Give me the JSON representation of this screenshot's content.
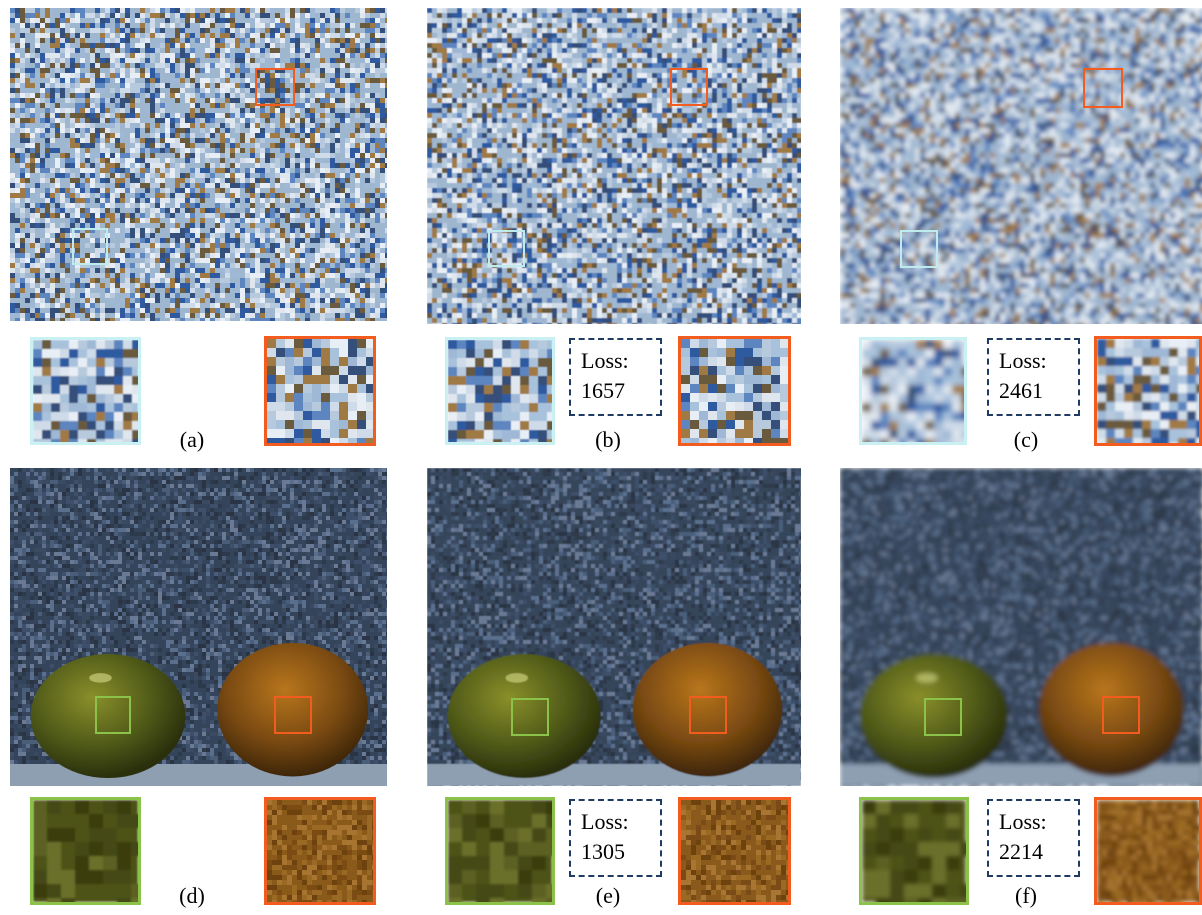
{
  "figure": {
    "panels": [
      {
        "id": "a",
        "caption": "(a)",
        "scene": "checker",
        "blur": 0,
        "loss": null
      },
      {
        "id": "b",
        "caption": "(b)",
        "scene": "checker",
        "blur": 0.6,
        "loss": {
          "label": "Loss:",
          "value": "1657"
        }
      },
      {
        "id": "c",
        "caption": "(c)",
        "scene": "checker",
        "blur": 2.5,
        "loss": {
          "label": "Loss:",
          "value": "2461"
        }
      },
      {
        "id": "d",
        "caption": "(d)",
        "scene": "fruit",
        "blur": 0,
        "loss": null
      },
      {
        "id": "e",
        "caption": "(e)",
        "scene": "fruit",
        "blur": 0.6,
        "loss": {
          "label": "Loss:",
          "value": "1305"
        }
      },
      {
        "id": "f",
        "caption": "(f)",
        "scene": "fruit",
        "blur": 2.5,
        "loss": {
          "label": "Loss:",
          "value": "2214"
        }
      }
    ]
  },
  "colors": {
    "roi_cyan": "#bdebee",
    "roi_orange": "#f25c1f",
    "roi_green": "#8bc34a",
    "loss_border": "#1f3b63"
  }
}
